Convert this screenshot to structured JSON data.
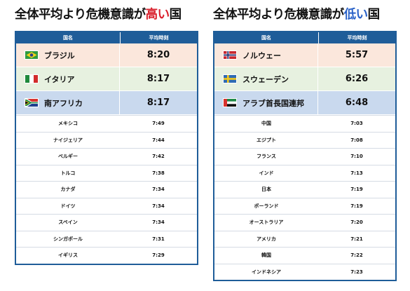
{
  "left": {
    "title_pre": "全体平均より危機意識が",
    "title_hl": "高い",
    "title_post": "国",
    "header": {
      "country": "国名",
      "time": "平均時刻"
    },
    "top": [
      {
        "name": "ブラジル",
        "time": "8:20",
        "flag": "brazil-flag-icon"
      },
      {
        "name": "イタリア",
        "time": "8:17",
        "flag": "italy-flag-icon"
      },
      {
        "name": "南アフリカ",
        "time": "8:17",
        "flag": "south-africa-flag-icon"
      }
    ],
    "rows": [
      {
        "name": "メキシコ",
        "time": "7:49"
      },
      {
        "name": "ナイジェリア",
        "time": "7:44"
      },
      {
        "name": "ベルギー",
        "time": "7:42"
      },
      {
        "name": "トルコ",
        "time": "7:38"
      },
      {
        "name": "カナダ",
        "time": "7:34"
      },
      {
        "name": "ドイツ",
        "time": "7:34"
      },
      {
        "name": "スペイン",
        "time": "7:34"
      },
      {
        "name": "シンガポール",
        "time": "7:31"
      },
      {
        "name": "イギリス",
        "time": "7:29"
      }
    ]
  },
  "right": {
    "title_pre": "全体平均より危機意識が",
    "title_hl": "低い",
    "title_post": "国",
    "header": {
      "country": "国名",
      "time": "平均時刻"
    },
    "top": [
      {
        "name": "ノルウェー",
        "time": "5:57",
        "flag": "norway-flag-icon"
      },
      {
        "name": "スウェーデン",
        "time": "6:26",
        "flag": "sweden-flag-icon"
      },
      {
        "name": "アラブ首長国連邦",
        "time": "6:48",
        "flag": "uae-flag-icon"
      }
    ],
    "rows": [
      {
        "name": "中国",
        "time": "7:03"
      },
      {
        "name": "エジプト",
        "time": "7:08"
      },
      {
        "name": "フランス",
        "time": "7:10"
      },
      {
        "name": "インド",
        "time": "7:13"
      },
      {
        "name": "日本",
        "time": "7:19"
      },
      {
        "name": "ポーランド",
        "time": "7:19"
      },
      {
        "name": "オーストラリア",
        "time": "7:20"
      },
      {
        "name": "アメリカ",
        "time": "7:21"
      },
      {
        "name": "韓国",
        "time": "7:22"
      },
      {
        "name": "インドネシア",
        "time": "7:23"
      }
    ]
  },
  "colors": {
    "header_blue": "#1f5d99",
    "highlight_red": "#d9202c",
    "highlight_blue": "#2a62c8",
    "rank1_bg": "#fbe7dc",
    "rank2_bg": "#e7f1e0",
    "rank3_bg": "#c9d9ee"
  }
}
